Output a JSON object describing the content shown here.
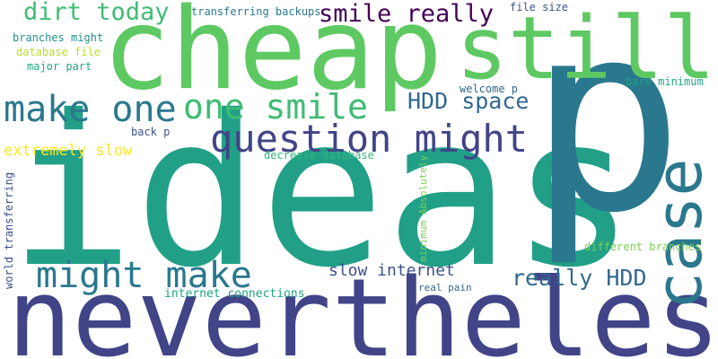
{
  "words": [
    {
      "id": "w01",
      "text": "ideas",
      "color": "#21a087",
      "vertical": false
    },
    {
      "id": "w02",
      "text": "p",
      "color": "#2a788e",
      "vertical": false
    },
    {
      "id": "w03",
      "text": "nevertheless",
      "color": "#414487",
      "vertical": false
    },
    {
      "id": "w04",
      "text": "cheap",
      "color": "#5ec962",
      "vertical": false
    },
    {
      "id": "w05",
      "text": "still",
      "color": "#5ec962",
      "vertical": false
    },
    {
      "id": "w06",
      "text": "case",
      "color": "#2a788e",
      "vertical": true
    },
    {
      "id": "w07",
      "text": "question might",
      "color": "#414487",
      "vertical": false
    },
    {
      "id": "w08",
      "text": "make one",
      "color": "#2a788e",
      "vertical": false
    },
    {
      "id": "w09",
      "text": "one smile",
      "color": "#3fbc73",
      "vertical": false
    },
    {
      "id": "w10",
      "text": "might make",
      "color": "#2a788e",
      "vertical": false
    },
    {
      "id": "w11",
      "text": "dirt today",
      "color": "#3fbc73",
      "vertical": false
    },
    {
      "id": "w12",
      "text": "smile really",
      "color": "#440154",
      "vertical": false
    },
    {
      "id": "w13",
      "text": "HDD space",
      "color": "#31688e",
      "vertical": false
    },
    {
      "id": "w14",
      "text": "really HDD",
      "color": "#31688e",
      "vertical": false
    },
    {
      "id": "w15",
      "text": "slow internet",
      "color": "#3b528b",
      "vertical": false
    },
    {
      "id": "w16",
      "text": "extremely slow",
      "color": "#fde725",
      "vertical": false
    },
    {
      "id": "w17",
      "text": "world transferring",
      "color": "#3b528b",
      "vertical": true
    },
    {
      "id": "w18",
      "text": "transferring backups",
      "color": "#2a788e",
      "vertical": false
    },
    {
      "id": "w19",
      "text": "file size",
      "color": "#3b528b",
      "vertical": false
    },
    {
      "id": "w20",
      "text": "branches might",
      "color": "#21918c",
      "vertical": false
    },
    {
      "id": "w21",
      "text": "database file",
      "color": "#bddf26",
      "vertical": false
    },
    {
      "id": "w22",
      "text": "major part",
      "color": "#22a884",
      "vertical": false
    },
    {
      "id": "w23",
      "text": "welcome p",
      "color": "#31688e",
      "vertical": false
    },
    {
      "id": "w24",
      "text": "bare minimum",
      "color": "#20a486",
      "vertical": false
    },
    {
      "id": "w25",
      "text": "back p",
      "color": "#3b528b",
      "vertical": false
    },
    {
      "id": "w26",
      "text": "decrease database",
      "color": "#35b779",
      "vertical": false
    },
    {
      "id": "w27",
      "text": "minimum Absolutely",
      "color": "#7ad151",
      "vertical": true
    },
    {
      "id": "w28",
      "text": "different branches",
      "color": "#7ad151",
      "vertical": false
    },
    {
      "id": "w29",
      "text": "internet connections",
      "color": "#20a486",
      "vertical": false
    },
    {
      "id": "w30",
      "text": "real pain",
      "color": "#31688e",
      "vertical": false
    }
  ]
}
